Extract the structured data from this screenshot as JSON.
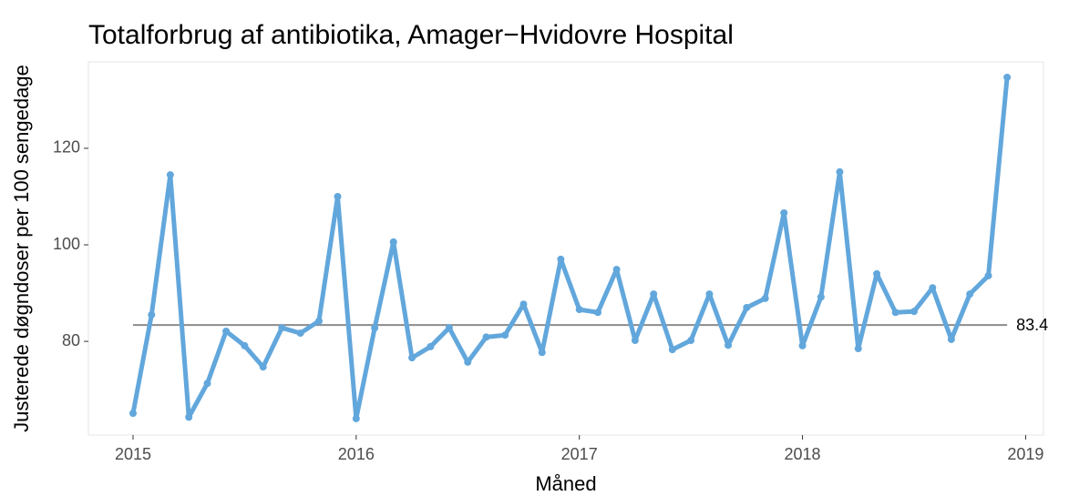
{
  "chart_data": {
    "type": "line",
    "title": "Totalforbrug af antibiotika, Amager−Hvidovre Hospital",
    "x_label": "Måned",
    "y_label": "Justerede døgndoser per 100 sengedage",
    "x": [
      2015.0,
      2015.083,
      2015.167,
      2015.25,
      2015.333,
      2015.417,
      2015.5,
      2015.583,
      2015.667,
      2015.75,
      2015.833,
      2015.917,
      2016.0,
      2016.083,
      2016.167,
      2016.25,
      2016.333,
      2016.417,
      2016.5,
      2016.583,
      2016.667,
      2016.75,
      2016.833,
      2016.917,
      2017.0,
      2017.083,
      2017.167,
      2017.25,
      2017.333,
      2017.417,
      2017.5,
      2017.583,
      2017.667,
      2017.75,
      2017.833,
      2017.917,
      2018.0,
      2018.083,
      2018.167,
      2018.25,
      2018.333,
      2018.417,
      2018.5,
      2018.583,
      2018.667,
      2018.75,
      2018.833,
      2018.917
    ],
    "series": [
      {
        "color": "#62a7dc",
        "values": [
          65.1,
          85.5,
          114.5,
          64.3,
          71.3,
          82.1,
          79.1,
          74.7,
          82.8,
          81.7,
          84.2,
          110.0,
          64.0,
          82.8,
          100.6,
          76.6,
          78.9,
          82.8,
          75.7,
          80.9,
          81.3,
          87.7,
          77.7,
          97.0,
          86.6,
          86.0,
          94.9,
          80.2,
          89.8,
          78.3,
          80.2,
          89.8,
          79.2,
          87.0,
          88.9,
          106.6,
          79.1,
          89.2,
          115.1,
          78.5,
          94.0,
          86.0,
          86.2,
          91.1,
          80.4,
          89.8,
          93.6,
          134.7
        ]
      }
    ],
    "reference_line": {
      "value": 83.4,
      "color": "#8c8c8c"
    },
    "xlim": [
      2014.8,
      2019.08
    ],
    "xticks": [
      2015,
      2016,
      2017,
      2018,
      2019
    ],
    "ylim": [
      60.6,
      137.9
    ],
    "yticks": [
      80,
      100,
      120
    ],
    "grid": false
  }
}
